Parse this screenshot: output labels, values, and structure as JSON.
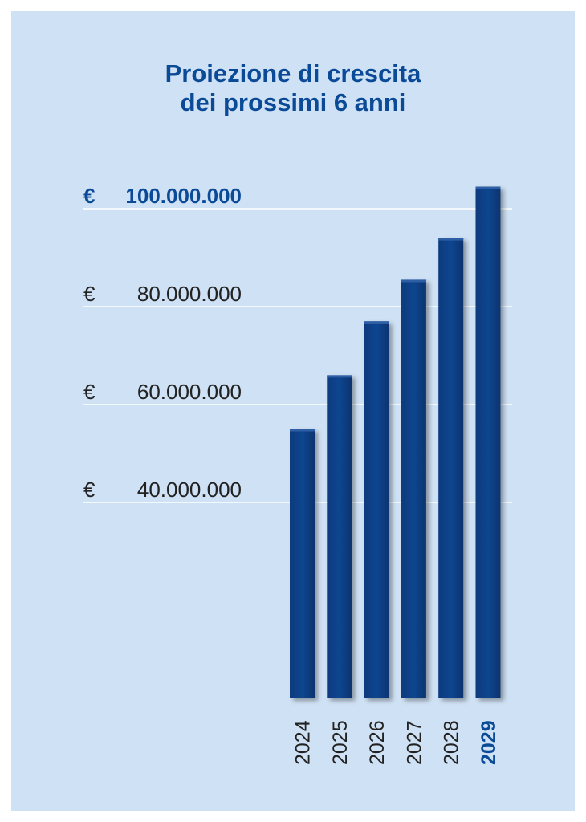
{
  "chart_data": {
    "type": "bar",
    "title_lines": [
      "Proiezione di crescita",
      "dei prossimi 6 anni"
    ],
    "categories": [
      "2024",
      "2025",
      "2026",
      "2027",
      "2028",
      "2029"
    ],
    "highlight_category": "2029",
    "values": [
      55000000,
      66000000,
      77000000,
      85500000,
      94000000,
      104500000
    ],
    "yticks": [
      {
        "value": 40000000,
        "currency": "€",
        "label": "40.000.000",
        "bold": false
      },
      {
        "value": 60000000,
        "currency": "€",
        "label": "60.000.000",
        "bold": false
      },
      {
        "value": 80000000,
        "currency": "€",
        "label": "80.000.000",
        "bold": false
      },
      {
        "value": 100000000,
        "currency": "€",
        "label": "100.000.000",
        "bold": true
      }
    ],
    "ylim": [
      0,
      110000000
    ],
    "grid": true,
    "colors": {
      "bar": "#0b4188",
      "bar_highlight_edge": "#2e5fa5",
      "background": "#cfe1f4",
      "accent_text": "#0b4a97",
      "tick_text": "#222222",
      "grid": "#ffffff"
    }
  }
}
